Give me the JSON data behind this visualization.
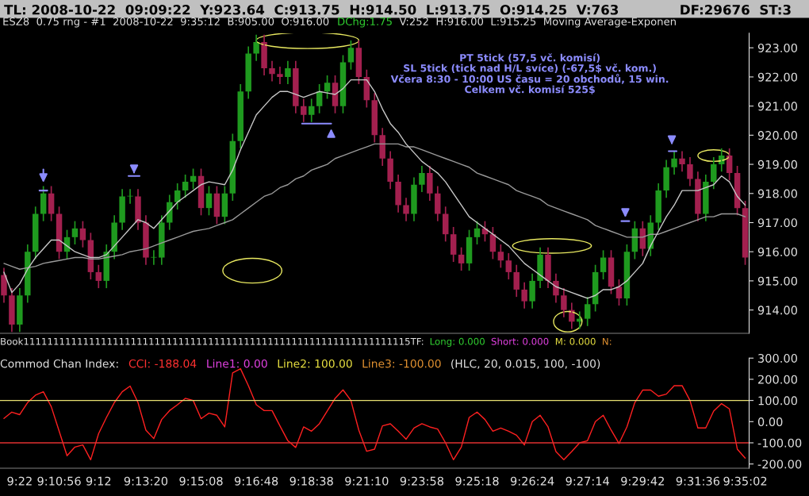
{
  "chart_data": [
    {
      "type": "candlestick",
      "categories": [
        null,
        null,
        null,
        null,
        null,
        null,
        null,
        null,
        null,
        null,
        null,
        null,
        null,
        null,
        null,
        null,
        null,
        null,
        null,
        null,
        null,
        null,
        null,
        null,
        null,
        null,
        null,
        null,
        null,
        null,
        null,
        null,
        null,
        null,
        null,
        null,
        null,
        null,
        null,
        null,
        null,
        null,
        null,
        null,
        null,
        null,
        null,
        null,
        null,
        null,
        null,
        null,
        null,
        null,
        null,
        null,
        null,
        null,
        null,
        null,
        null,
        null,
        null,
        null,
        null,
        null,
        null,
        null,
        null,
        null,
        null,
        null,
        null,
        null,
        null,
        null,
        null,
        null,
        null,
        null,
        null,
        null,
        null,
        null,
        null,
        null,
        null,
        null,
        null,
        null,
        null,
        null,
        null,
        null,
        null
      ],
      "ohlc": [
        [
          915.2,
          915.45,
          914.25,
          914.5
        ],
        [
          914.5,
          914.75,
          913.25,
          913.5
        ],
        [
          913.5,
          914.75,
          913.25,
          914.5
        ],
        [
          914.5,
          916.25,
          914.25,
          916
        ],
        [
          916,
          917.55,
          915.75,
          917.3
        ],
        [
          917.3,
          918.25,
          917.05,
          918
        ],
        [
          918,
          918.25,
          917.05,
          917.3
        ],
        [
          917.3,
          917.55,
          915.75,
          916
        ],
        [
          916,
          916.75,
          915.75,
          916.5
        ],
        [
          916.5,
          917.05,
          916.25,
          916.8
        ],
        [
          916.8,
          917.05,
          916.15,
          916.4
        ],
        [
          916.4,
          916.65,
          915.05,
          915.3
        ],
        [
          915.3,
          915.55,
          914.75,
          915
        ],
        [
          915,
          916.25,
          914.75,
          916
        ],
        [
          916,
          917.25,
          915.75,
          917
        ],
        [
          917,
          918.15,
          916.75,
          917.9
        ],
        [
          917.9,
          918.15,
          917.65,
          917.9
        ],
        [
          917.9,
          918.15,
          916.75,
          917
        ],
        [
          917,
          917.25,
          915.55,
          915.8
        ],
        [
          915.8,
          916.05,
          915.55,
          915.8
        ],
        [
          915.8,
          917.25,
          915.55,
          917
        ],
        [
          917,
          917.95,
          916.75,
          917.7
        ],
        [
          917.7,
          918.35,
          917.45,
          918.1
        ],
        [
          918.1,
          918.65,
          917.85,
          918.4
        ],
        [
          918.4,
          918.85,
          918.15,
          918.6
        ],
        [
          918.6,
          918.85,
          917.25,
          917.5
        ],
        [
          917.5,
          918.25,
          917.25,
          918
        ],
        [
          918,
          918.25,
          916.95,
          917.2
        ],
        [
          917.2,
          918.25,
          916.95,
          918
        ],
        [
          918,
          920.05,
          917.75,
          919.8
        ],
        [
          919.8,
          921.75,
          919.55,
          921.5
        ],
        [
          921.5,
          923.05,
          921.25,
          922.8
        ],
        [
          922.8,
          923.45,
          922.55,
          923.2
        ],
        [
          923.2,
          923.45,
          922.05,
          922.3
        ],
        [
          922.3,
          922.55,
          921.85,
          922.1
        ],
        [
          922.1,
          922.35,
          921.75,
          922
        ],
        [
          922,
          922.55,
          921.75,
          922.3
        ],
        [
          922.3,
          922.55,
          920.75,
          921
        ],
        [
          921,
          921.25,
          920.45,
          920.7
        ],
        [
          920.7,
          921.25,
          920.45,
          921
        ],
        [
          921,
          921.75,
          920.75,
          921.5
        ],
        [
          921.5,
          922.05,
          921.25,
          921.8
        ],
        [
          921.8,
          922.05,
          920.75,
          921
        ],
        [
          921,
          922.75,
          920.75,
          922.5
        ],
        [
          922.5,
          923.25,
          922.25,
          923
        ],
        [
          923,
          923.25,
          921.75,
          922
        ],
        [
          922,
          922.25,
          920.95,
          921.2
        ],
        [
          921.2,
          921.45,
          919.75,
          920
        ],
        [
          920,
          920.25,
          918.95,
          919.2
        ],
        [
          919.2,
          919.45,
          918.15,
          918.4
        ],
        [
          918.4,
          918.65,
          917.35,
          917.6
        ],
        [
          917.6,
          917.85,
          917.05,
          917.3
        ],
        [
          917.3,
          918.55,
          917.05,
          918.3
        ],
        [
          918.3,
          918.95,
          918.05,
          918.7
        ],
        [
          918.7,
          918.95,
          917.75,
          918
        ],
        [
          918,
          918.25,
          917.05,
          917.3
        ],
        [
          917.3,
          917.55,
          916.35,
          916.6
        ],
        [
          916.6,
          916.85,
          915.65,
          915.9
        ],
        [
          915.9,
          916.15,
          915.35,
          915.6
        ],
        [
          915.6,
          916.75,
          915.35,
          916.5
        ],
        [
          916.5,
          917.05,
          916.25,
          916.8
        ],
        [
          916.8,
          917.05,
          916.35,
          916.6
        ],
        [
          916.6,
          916.85,
          915.75,
          916
        ],
        [
          916,
          916.25,
          915.45,
          915.7
        ],
        [
          915.7,
          915.95,
          915.05,
          915.3
        ],
        [
          915.3,
          915.55,
          914.45,
          914.7
        ],
        [
          914.7,
          914.95,
          914.05,
          914.3
        ],
        [
          914.3,
          915.25,
          914.05,
          915
        ],
        [
          915,
          916.15,
          914.75,
          915.9
        ],
        [
          915.9,
          916.15,
          914.75,
          915
        ],
        [
          915,
          915.25,
          914.25,
          914.5
        ],
        [
          914.5,
          914.75,
          913.75,
          914
        ],
        [
          914,
          914.25,
          913.35,
          913.6
        ],
        [
          913.6,
          913.95,
          913.35,
          913.7
        ],
        [
          913.7,
          914.45,
          913.45,
          914.2
        ],
        [
          914.2,
          915.55,
          913.95,
          915.3
        ],
        [
          915.3,
          916.05,
          915.05,
          915.8
        ],
        [
          915.8,
          916.05,
          914.55,
          914.8
        ],
        [
          914.8,
          915.05,
          914.15,
          914.4
        ],
        [
          914.4,
          916.25,
          914.15,
          916
        ],
        [
          916,
          917.05,
          915.75,
          916.8
        ],
        [
          916.8,
          917.05,
          915.85,
          916.1
        ],
        [
          916.1,
          917.25,
          915.85,
          917
        ],
        [
          917,
          918.35,
          916.75,
          918.1
        ],
        [
          918.1,
          919.15,
          917.85,
          918.9
        ],
        [
          918.9,
          919.45,
          918.65,
          919.2
        ],
        [
          919.2,
          919.45,
          918.75,
          919
        ],
        [
          919,
          919.25,
          918.25,
          918.5
        ],
        [
          918.5,
          918.75,
          917.05,
          917.3
        ],
        [
          917.3,
          918.65,
          917.05,
          918.4
        ],
        [
          918.4,
          919.25,
          918.15,
          919
        ],
        [
          919,
          919.55,
          918.75,
          919.3
        ],
        [
          919.3,
          919.55,
          918.45,
          918.7
        ],
        [
          918.7,
          918.95,
          917.25,
          917.5
        ],
        [
          917.5,
          917.75,
          915.55,
          915.8
        ]
      ],
      "series": [
        {
          "type": "line",
          "color": "#9a9a9a",
          "values": [
            915.6,
            915.5,
            915.4,
            915.45,
            915.5,
            915.6,
            915.65,
            915.7,
            915.75,
            915.8,
            915.8,
            915.75,
            915.75,
            915.8,
            915.85,
            915.9,
            916.0,
            916.05,
            916.1,
            916.2,
            916.3,
            916.4,
            916.5,
            916.6,
            916.7,
            916.75,
            916.8,
            916.9,
            917.0,
            917.1,
            917.3,
            917.5,
            917.7,
            917.9,
            918.0,
            918.2,
            918.3,
            918.5,
            918.6,
            918.8,
            918.9,
            919.0,
            919.2,
            919.3,
            919.4,
            919.5,
            919.6,
            919.7,
            919.7,
            919.7,
            919.7,
            919.6,
            919.6,
            919.5,
            919.4,
            919.3,
            919.2,
            919.1,
            919.0,
            918.9,
            918.7,
            918.6,
            918.5,
            918.4,
            918.3,
            918.1,
            918.0,
            917.9,
            917.8,
            917.6,
            917.5,
            917.4,
            917.3,
            917.2,
            917.1,
            916.9,
            916.8,
            916.7,
            916.6,
            916.5,
            916.5,
            916.5,
            916.6,
            916.6,
            916.7,
            916.8,
            916.9,
            917.0,
            917.1,
            917.2,
            917.2,
            917.3,
            917.3,
            917.3,
            917.2
          ]
        },
        {
          "type": "line",
          "color": "#c8c8c8",
          "values": [
            915.3,
            914.6,
            914.9,
            915.4,
            915.8,
            916.1,
            916.4,
            916.4,
            916.2,
            916.0,
            915.9,
            915.8,
            915.8,
            915.9,
            916.2,
            916.5,
            916.8,
            917.1,
            917.0,
            916.8,
            917.1,
            917.4,
            917.7,
            917.9,
            918.1,
            918.3,
            918.4,
            918.35,
            918.3,
            918.8,
            919.5,
            920.1,
            920.7,
            921.0,
            921.3,
            921.5,
            921.5,
            921.4,
            921.3,
            921.4,
            921.5,
            921.45,
            921.4,
            921.6,
            921.9,
            921.9,
            921.9,
            921.5,
            920.9,
            920.4,
            920.1,
            919.7,
            919.4,
            919.1,
            918.9,
            918.7,
            918.4,
            918.0,
            917.6,
            917.2,
            917.0,
            916.8,
            916.6,
            916.4,
            916.2,
            915.9,
            915.6,
            915.4,
            915.2,
            915.0,
            914.8,
            914.7,
            914.6,
            914.5,
            914.4,
            914.5,
            914.7,
            914.7,
            914.8,
            915.0,
            915.3,
            915.6,
            916.2,
            916.7,
            917.2,
            917.6,
            918.1,
            918.1,
            918.1,
            918.2,
            918.3,
            918.6,
            918.4,
            917.9,
            917.6
          ]
        }
      ],
      "ylim": [
        913.2,
        923.5
      ],
      "yticks": [
        {
          "value": 914,
          "label": "914.00"
        },
        {
          "value": 915,
          "label": "915.00"
        },
        {
          "value": 916,
          "label": "916.00"
        },
        {
          "value": 917,
          "label": "917.00"
        },
        {
          "value": 918,
          "label": "918.00"
        },
        {
          "value": 919,
          "label": "919.00"
        },
        {
          "value": 920,
          "label": "920.00"
        },
        {
          "value": 921,
          "label": "921.00"
        },
        {
          "value": 922,
          "label": "922.00"
        },
        {
          "value": 923,
          "label": "923.00"
        }
      ],
      "tick_labels": "y",
      "annotations": [
        "TL: 2008-10-22  09:09:22  Y:923.64  C:913.75  H:914.50  L:913.75  O:914.25  V:763",
        "DF:29676  ST:3",
        "ESZ8  0.75 rng - #1  2008-10-22  9:35:12  B:905.00  O:916.00",
        "DChg:1.75",
        "V:252  H:916.00  L:915.25",
        "Moving Average-Exponen",
        "PT 5tick (57,5 vč. komisí)\nSL 5tick (tick nad H/L svíce) (-67,5$ vč. kom.)\nVčera 8:30 - 10:00 US času = 20 obchodů, 15 win.\nCelkem vč. komisí 525$",
        "Book11111111111111111111111111111111111111111111111111111111111111115TF:",
        "Long: 0.000",
        "Short: 0.000",
        "M: 0.000",
        "N:"
      ]
    },
    {
      "type": "line",
      "categories": [
        null,
        null,
        "9:22",
        null,
        null,
        null,
        null,
        "9:10:56",
        null,
        null,
        null,
        null,
        "9:12",
        null,
        null,
        null,
        null,
        null,
        "9:13:20",
        null,
        null,
        null,
        null,
        null,
        null,
        "9:15:08",
        null,
        null,
        null,
        null,
        null,
        null,
        "9:16:48",
        null,
        null,
        null,
        null,
        null,
        null,
        "9:18:38",
        null,
        null,
        null,
        null,
        null,
        null,
        "9:21:10",
        null,
        null,
        null,
        null,
        null,
        null,
        "9:23:58",
        null,
        null,
        null,
        null,
        null,
        null,
        "9:25:18",
        null,
        null,
        null,
        null,
        null,
        null,
        "9:26:24",
        null,
        null,
        null,
        null,
        null,
        null,
        "9:27:14",
        null,
        null,
        null,
        null,
        null,
        null,
        "9:29:42",
        null,
        null,
        null,
        null,
        null,
        null,
        "9:31:36",
        null,
        null,
        null,
        null,
        null,
        "9:35:02"
      ],
      "series": [
        {
          "color": "#ff2020",
          "values": [
            15,
            45,
            33,
            90,
            125,
            141,
            71,
            -45,
            -161,
            -120,
            -110,
            -180,
            -57,
            20,
            90,
            141,
            168,
            90,
            -40,
            -80,
            10,
            52,
            80,
            110,
            100,
            14,
            40,
            30,
            -25,
            230,
            250,
            170,
            80,
            52,
            52,
            -20,
            -90,
            -122,
            -25,
            -45,
            -10,
            50,
            110,
            150,
            100,
            -40,
            -140,
            -130,
            -20,
            -10,
            -45,
            -83,
            -30,
            -10,
            -25,
            -35,
            -100,
            -180,
            -120,
            20,
            45,
            10,
            -45,
            -30,
            -45,
            -64,
            -110,
            0,
            30,
            -25,
            -141,
            -180,
            -141,
            -100,
            -90,
            0,
            30,
            -40,
            -103,
            -25,
            90,
            149,
            149,
            120,
            130,
            170,
            170,
            100,
            -30,
            -30,
            50,
            85,
            60,
            -130,
            -172
          ]
        }
      ],
      "ylim": [
        -220,
        300
      ],
      "yticks": [
        {
          "value": 300,
          "label": "300.00"
        },
        {
          "value": 200,
          "label": "200.00"
        },
        {
          "value": 100,
          "label": "100.00"
        },
        {
          "value": 0,
          "label": "0.00"
        },
        {
          "value": -100,
          "label": "-100.00"
        },
        {
          "value": -200,
          "label": "-200.00"
        }
      ],
      "ref_lines": [
        {
          "axis": "y",
          "value": 100,
          "color": "#e8e070"
        },
        {
          "axis": "y",
          "value": -100,
          "color": "#e03030"
        }
      ],
      "annotations": [
        "Commod Chan Index:",
        "CCI: -188.04",
        "Line1: 0.00",
        "Line2: 100.00",
        "Line3: -100.00",
        "(HLC, 20, 0.015, 100, -100)"
      ]
    }
  ]
}
